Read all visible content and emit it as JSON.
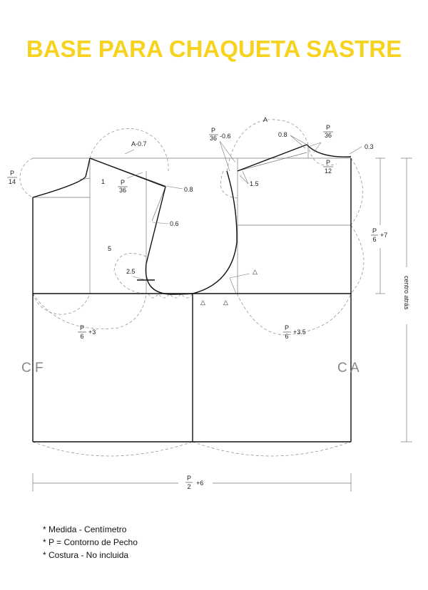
{
  "title": "BASE PARA CHAQUETA SASTRE",
  "title_color": "#f7d320",
  "labels": {
    "p": "P",
    "n14": "14",
    "n36": "36",
    "n12": "12",
    "n6": "6",
    "n2": "2",
    "a_minus_07": "A-0.7",
    "minus_06": "-0.6",
    "a": "A",
    "v08a": "0.8",
    "v08b": "0.8",
    "v03": "0.3",
    "v1": "1",
    "v15": "1.5",
    "v06": "0.6",
    "v5": "5",
    "v25": "2.5",
    "plus7": "+7",
    "plus3": "+3",
    "plus35": "+3.5",
    "plus6": "+6",
    "cf": "C F",
    "ca": "C A",
    "centro_atras": "centro atrás",
    "triangle": "△"
  },
  "notes": [
    "* Medida - Centímetro",
    "* P = Contorno de Pecho",
    "* Costura - No incluida"
  ]
}
